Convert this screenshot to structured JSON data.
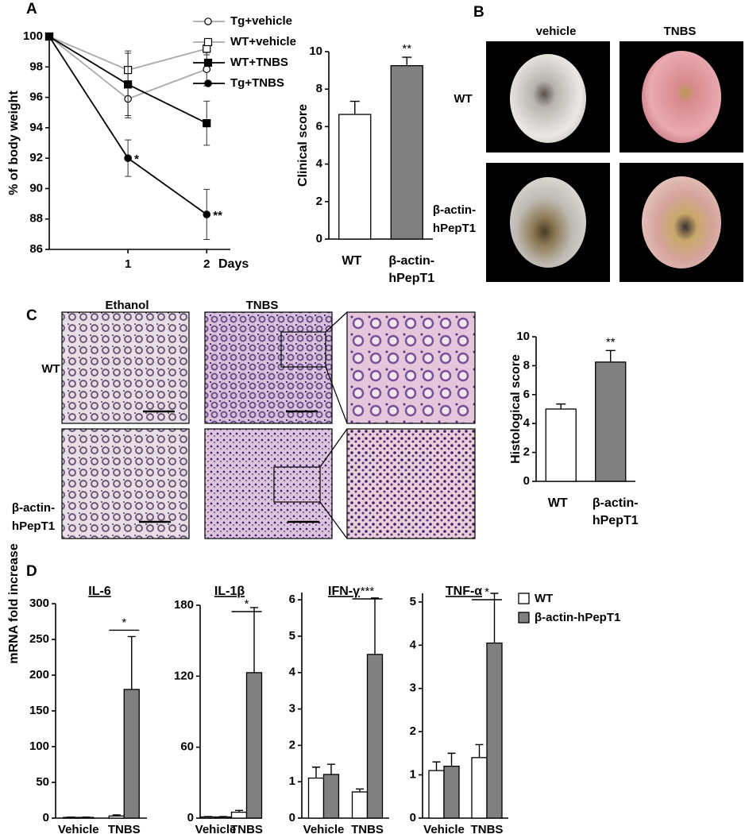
{
  "panel_labels": [
    "A",
    "B",
    "C",
    "D"
  ],
  "panel_b": {
    "columns": [
      "vehicle",
      "TNBS"
    ],
    "rows": [
      "WT",
      "β-actin-hPepT1"
    ]
  },
  "panel_c": {
    "columns": [
      "Ethanol",
      "TNBS"
    ],
    "rows": [
      "WT",
      "β-actin-hPepT1"
    ]
  },
  "chart_data": [
    {
      "type": "line",
      "x": [
        0,
        1,
        2
      ],
      "xlim": [
        0,
        2.3
      ],
      "xticks": [
        1,
        2
      ],
      "xlabel": "Days",
      "ylabel": "% of body weight",
      "ylim": [
        86,
        100
      ],
      "yticks": [
        86,
        88,
        90,
        92,
        94,
        96,
        98,
        100
      ],
      "series": [
        {
          "name": "Tg+vehicle",
          "color": "#aaaaaa",
          "marker": "circle",
          "filled": false,
          "values": [
            100,
            95.9,
            97.85
          ],
          "errors": [
            null,
            1.1,
            1.1
          ]
        },
        {
          "name": "WT+vehicle",
          "color": "#aaaaaa",
          "marker": "square",
          "filled": false,
          "values": [
            100,
            97.8,
            99.2
          ],
          "errors": [
            null,
            1.1,
            0.4
          ]
        },
        {
          "name": "WT+TNBS",
          "color": "#000000",
          "marker": "square",
          "filled": true,
          "values": [
            100,
            96.85,
            94.3
          ],
          "errors": [
            null,
            2.2,
            1.45
          ]
        },
        {
          "name": "Tg+TNBS",
          "color": "#000000",
          "marker": "circle",
          "filled": true,
          "values": [
            100,
            92.0,
            88.3
          ],
          "errors": [
            null,
            1.2,
            1.65
          ]
        }
      ],
      "annotations": [
        "*",
        "**"
      ]
    },
    {
      "type": "bar",
      "ylabel": "Clinical score",
      "categories": [
        "WT",
        "β-actin-hPepT1"
      ],
      "values": [
        6.65,
        9.25
      ],
      "errors": [
        0.7,
        0.45
      ],
      "colors": [
        "#ffffff",
        "#808080"
      ],
      "ylim": [
        0,
        10
      ],
      "yticks": [
        0,
        2,
        4,
        6,
        8,
        10
      ],
      "annotations": [
        "**"
      ]
    },
    {
      "type": "bar",
      "ylabel": "Histological score",
      "categories": [
        "WT",
        "β-actin-hPepT1"
      ],
      "values": [
        5.0,
        8.25
      ],
      "errors": [
        0.35,
        0.8
      ],
      "colors": [
        "#ffffff",
        "#808080"
      ],
      "ylim": [
        0,
        10
      ],
      "yticks": [
        0,
        2,
        4,
        6,
        8,
        10
      ],
      "annotations": [
        "**"
      ]
    },
    {
      "type": "grouped_bar",
      "title": "IL-6",
      "ylabel": "mRNA fold increase",
      "categories": [
        "Vehicle",
        "TNBS"
      ],
      "series": [
        {
          "name": "WT",
          "color": "#ffffff",
          "values": [
            1,
            3
          ],
          "errors": [
            0.5,
            1.5
          ]
        },
        {
          "name": "β-actin-hPepT1",
          "color": "#808080",
          "values": [
            1,
            180
          ],
          "errors": [
            0.5,
            74
          ]
        }
      ],
      "ylim": [
        0,
        300
      ],
      "yticks": [
        0,
        50,
        100,
        150,
        200,
        250,
        300
      ],
      "annotations": [
        "*"
      ]
    },
    {
      "type": "grouped_bar",
      "title": "IL-1β",
      "categories": [
        "Vehicle",
        "TNBS"
      ],
      "series": [
        {
          "color": "#ffffff",
          "values": [
            1,
            5
          ],
          "errors": [
            0.3,
            1.5
          ]
        },
        {
          "color": "#808080",
          "values": [
            1,
            123
          ],
          "errors": [
            0.3,
            55
          ]
        }
      ],
      "ylim": [
        0,
        180
      ],
      "yticks": [
        0,
        60,
        120,
        180
      ],
      "annotations": [
        "*"
      ]
    },
    {
      "type": "grouped_bar",
      "title": "IFN-γ",
      "categories": [
        "Vehicle",
        "TNBS"
      ],
      "series": [
        {
          "color": "#ffffff",
          "values": [
            1.1,
            0.72
          ],
          "errors": [
            0.3,
            0.08
          ]
        },
        {
          "color": "#808080",
          "values": [
            1.2,
            4.5
          ],
          "errors": [
            0.28,
            1.55
          ]
        }
      ],
      "ylim": [
        0,
        6.2
      ],
      "yticks": [
        0,
        1,
        2,
        3,
        4,
        5,
        6
      ],
      "annotations": [
        "***"
      ]
    },
    {
      "type": "grouped_bar",
      "title": "TNF-α",
      "categories": [
        "Vehicle",
        "TNBS"
      ],
      "series": [
        {
          "color": "#ffffff",
          "values": [
            1.1,
            1.4
          ],
          "errors": [
            0.2,
            0.3
          ]
        },
        {
          "color": "#808080",
          "values": [
            1.2,
            4.05
          ],
          "errors": [
            0.3,
            1.15
          ]
        }
      ],
      "ylim": [
        0,
        5.2
      ],
      "yticks": [
        0,
        1,
        2,
        3,
        4,
        5
      ],
      "annotations": [
        "*"
      ]
    }
  ]
}
